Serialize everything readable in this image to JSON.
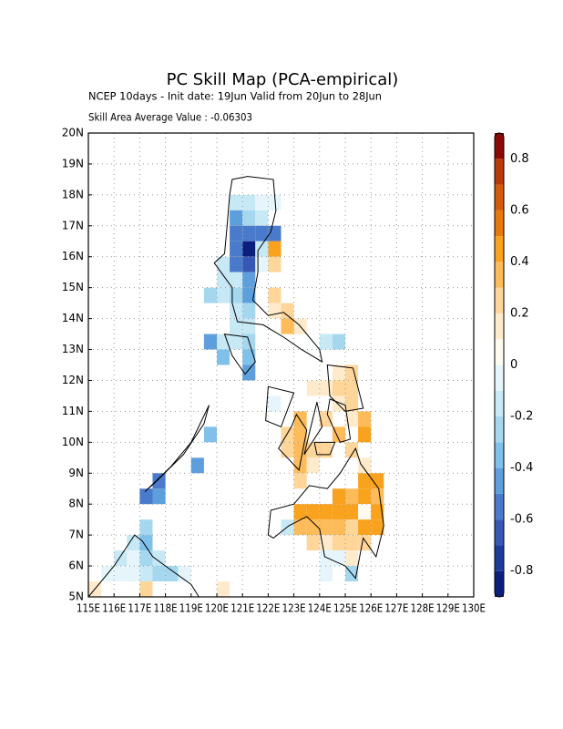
{
  "map": {
    "title": "PC Skill Map (PCA-empirical)",
    "subtitle": "NCEP 10days - Init date: 19Jun Valid from 20Jun to 28Jun",
    "annotation": "Skill Area Average Value : -0.06303",
    "xlim": [
      115,
      130
    ],
    "ylim": [
      5,
      20
    ],
    "grid": true,
    "xticks": [
      {
        "value": 115,
        "label": "115E"
      },
      {
        "value": 116,
        "label": "116E"
      },
      {
        "value": 117,
        "label": "117E"
      },
      {
        "value": 118,
        "label": "118E"
      },
      {
        "value": 119,
        "label": "119E"
      },
      {
        "value": 120,
        "label": "120E"
      },
      {
        "value": 121,
        "label": "121E"
      },
      {
        "value": 122,
        "label": "122E"
      },
      {
        "value": 123,
        "label": "123E"
      },
      {
        "value": 124,
        "label": "124E"
      },
      {
        "value": 125,
        "label": "125E"
      },
      {
        "value": 126,
        "label": "126E"
      },
      {
        "value": 127,
        "label": "127E"
      },
      {
        "value": 128,
        "label": "128E"
      },
      {
        "value": 129,
        "label": "129E"
      },
      {
        "value": 130,
        "label": "130E"
      }
    ],
    "yticks": [
      {
        "value": 5,
        "label": "5N"
      },
      {
        "value": 6,
        "label": "6N"
      },
      {
        "value": 7,
        "label": "7N"
      },
      {
        "value": 8,
        "label": "8N"
      },
      {
        "value": 9,
        "label": "9N"
      },
      {
        "value": 10,
        "label": "10N"
      },
      {
        "value": 11,
        "label": "11N"
      },
      {
        "value": 12,
        "label": "12N"
      },
      {
        "value": 13,
        "label": "13N"
      },
      {
        "value": 14,
        "label": "14N"
      },
      {
        "value": 15,
        "label": "15N"
      },
      {
        "value": 16,
        "label": "16N"
      },
      {
        "value": 17,
        "label": "17N"
      },
      {
        "value": 18,
        "label": "18N"
      },
      {
        "value": 19,
        "label": "19N"
      },
      {
        "value": 20,
        "label": "20N"
      }
    ],
    "cell_size": 0.5,
    "cells": [
      {
        "lon": 120.5,
        "lat": 17.5,
        "value": -0.15
      },
      {
        "lon": 121.0,
        "lat": 17.5,
        "value": -0.2
      },
      {
        "lon": 121.5,
        "lat": 17.5,
        "value": -0.1
      },
      {
        "lon": 122.0,
        "lat": 17.5,
        "value": -0.05
      },
      {
        "lon": 120.5,
        "lat": 17.0,
        "value": -0.5
      },
      {
        "lon": 121.0,
        "lat": 17.0,
        "value": -0.25
      },
      {
        "lon": 121.5,
        "lat": 17.0,
        "value": -0.2
      },
      {
        "lon": 120.5,
        "lat": 16.5,
        "value": -0.6
      },
      {
        "lon": 121.0,
        "lat": 16.5,
        "value": -0.55
      },
      {
        "lon": 121.5,
        "lat": 16.5,
        "value": -0.55
      },
      {
        "lon": 122.0,
        "lat": 16.5,
        "value": -0.55
      },
      {
        "lon": 120.5,
        "lat": 16.0,
        "value": -0.55
      },
      {
        "lon": 121.0,
        "lat": 16.0,
        "value": -0.85
      },
      {
        "lon": 121.5,
        "lat": 16.0,
        "value": -0.2
      },
      {
        "lon": 122.0,
        "lat": 16.0,
        "value": 0.45
      },
      {
        "lon": 120.0,
        "lat": 15.5,
        "value": -0.2
      },
      {
        "lon": 120.5,
        "lat": 15.5,
        "value": -0.55
      },
      {
        "lon": 121.0,
        "lat": 15.5,
        "value": -0.7
      },
      {
        "lon": 121.5,
        "lat": 15.5,
        "value": -0.1
      },
      {
        "lon": 122.0,
        "lat": 15.5,
        "value": 0.2
      },
      {
        "lon": 120.0,
        "lat": 15.0,
        "value": -0.15
      },
      {
        "lon": 120.5,
        "lat": 15.0,
        "value": -0.2
      },
      {
        "lon": 121.0,
        "lat": 15.0,
        "value": -0.5
      },
      {
        "lon": 119.5,
        "lat": 14.5,
        "value": -0.3
      },
      {
        "lon": 120.0,
        "lat": 14.5,
        "value": -0.2
      },
      {
        "lon": 120.5,
        "lat": 14.5,
        "value": -0.3
      },
      {
        "lon": 121.0,
        "lat": 14.5,
        "value": -0.5
      },
      {
        "lon": 122.0,
        "lat": 14.5,
        "value": 0.2
      },
      {
        "lon": 120.5,
        "lat": 14.0,
        "value": -0.15
      },
      {
        "lon": 121.0,
        "lat": 14.0,
        "value": -0.25
      },
      {
        "lon": 122.0,
        "lat": 14.0,
        "value": 0.15
      },
      {
        "lon": 122.5,
        "lat": 14.0,
        "value": 0.25
      },
      {
        "lon": 120.5,
        "lat": 13.5,
        "value": -0.15
      },
      {
        "lon": 121.0,
        "lat": 13.5,
        "value": -0.2
      },
      {
        "lon": 122.5,
        "lat": 13.5,
        "value": 0.3
      },
      {
        "lon": 123.0,
        "lat": 13.5,
        "value": 0.15
      },
      {
        "lon": 119.5,
        "lat": 13.0,
        "value": -0.5
      },
      {
        "lon": 120.0,
        "lat": 13.0,
        "value": -0.2
      },
      {
        "lon": 120.5,
        "lat": 13.0,
        "value": -0.2
      },
      {
        "lon": 121.0,
        "lat": 13.0,
        "value": -0.3
      },
      {
        "lon": 124.0,
        "lat": 13.0,
        "value": -0.2
      },
      {
        "lon": 124.5,
        "lat": 13.0,
        "value": -0.25
      },
      {
        "lon": 120.0,
        "lat": 12.5,
        "value": -0.35
      },
      {
        "lon": 121.0,
        "lat": 12.5,
        "value": -0.4
      },
      {
        "lon": 121.0,
        "lat": 12.0,
        "value": -0.5
      },
      {
        "lon": 124.5,
        "lat": 12.0,
        "value": 0.15
      },
      {
        "lon": 125.0,
        "lat": 12.0,
        "value": 0.2
      },
      {
        "lon": 123.5,
        "lat": 11.5,
        "value": 0.1
      },
      {
        "lon": 124.0,
        "lat": 11.5,
        "value": 0.15
      },
      {
        "lon": 124.5,
        "lat": 11.5,
        "value": 0.2
      },
      {
        "lon": 125.0,
        "lat": 11.5,
        "value": 0.25
      },
      {
        "lon": 122.0,
        "lat": 11.0,
        "value": -0.1
      },
      {
        "lon": 124.5,
        "lat": 11.0,
        "value": 0.15
      },
      {
        "lon": 125.0,
        "lat": 11.0,
        "value": 0.2
      },
      {
        "lon": 123.0,
        "lat": 10.5,
        "value": 0.3
      },
      {
        "lon": 124.0,
        "lat": 10.5,
        "value": 0.2
      },
      {
        "lon": 125.0,
        "lat": 10.5,
        "value": 0.15
      },
      {
        "lon": 125.5,
        "lat": 10.5,
        "value": 0.35
      },
      {
        "lon": 119.5,
        "lat": 10.0,
        "value": -0.35
      },
      {
        "lon": 122.5,
        "lat": 10.0,
        "value": 0.2
      },
      {
        "lon": 123.0,
        "lat": 10.0,
        "value": 0.35
      },
      {
        "lon": 124.5,
        "lat": 10.0,
        "value": 0.3
      },
      {
        "lon": 125.5,
        "lat": 10.0,
        "value": 0.45
      },
      {
        "lon": 122.5,
        "lat": 9.5,
        "value": 0.25
      },
      {
        "lon": 123.0,
        "lat": 9.5,
        "value": 0.3
      },
      {
        "lon": 123.5,
        "lat": 9.5,
        "value": 0.25
      },
      {
        "lon": 124.0,
        "lat": 9.5,
        "value": 0.2
      },
      {
        "lon": 125.0,
        "lat": 9.5,
        "value": 0.2
      },
      {
        "lon": 119.0,
        "lat": 9.0,
        "value": -0.45
      },
      {
        "lon": 123.0,
        "lat": 9.0,
        "value": 0.3
      },
      {
        "lon": 123.5,
        "lat": 9.0,
        "value": 0.15
      },
      {
        "lon": 125.5,
        "lat": 9.0,
        "value": 0.1
      },
      {
        "lon": 117.5,
        "lat": 8.5,
        "value": -0.55
      },
      {
        "lon": 123.0,
        "lat": 8.5,
        "value": 0.2
      },
      {
        "lon": 125.5,
        "lat": 8.5,
        "value": 0.45
      },
      {
        "lon": 126.0,
        "lat": 8.5,
        "value": 0.45
      },
      {
        "lon": 117.0,
        "lat": 8.0,
        "value": -0.55
      },
      {
        "lon": 117.5,
        "lat": 8.0,
        "value": -0.5
      },
      {
        "lon": 124.5,
        "lat": 8.0,
        "value": 0.4
      },
      {
        "lon": 125.0,
        "lat": 8.0,
        "value": 0.35
      },
      {
        "lon": 125.5,
        "lat": 8.0,
        "value": 0.45
      },
      {
        "lon": 126.0,
        "lat": 8.0,
        "value": 0.3
      },
      {
        "lon": 123.0,
        "lat": 7.5,
        "value": 0.4
      },
      {
        "lon": 123.5,
        "lat": 7.5,
        "value": 0.45
      },
      {
        "lon": 124.0,
        "lat": 7.5,
        "value": 0.45
      },
      {
        "lon": 124.5,
        "lat": 7.5,
        "value": 0.45
      },
      {
        "lon": 125.0,
        "lat": 7.5,
        "value": 0.45
      },
      {
        "lon": 125.5,
        "lat": 7.5,
        "value": 0.05
      },
      {
        "lon": 126.0,
        "lat": 7.5,
        "value": 0.45
      },
      {
        "lon": 117.0,
        "lat": 7.0,
        "value": -0.3
      },
      {
        "lon": 122.5,
        "lat": 7.0,
        "value": -0.15
      },
      {
        "lon": 123.0,
        "lat": 7.0,
        "value": 0.35
      },
      {
        "lon": 123.5,
        "lat": 7.0,
        "value": 0.3
      },
      {
        "lon": 124.0,
        "lat": 7.0,
        "value": 0.3
      },
      {
        "lon": 124.5,
        "lat": 7.0,
        "value": 0.3
      },
      {
        "lon": 125.0,
        "lat": 7.0,
        "value": 0.25
      },
      {
        "lon": 125.5,
        "lat": 7.0,
        "value": 0.45
      },
      {
        "lon": 126.0,
        "lat": 7.0,
        "value": 0.45
      },
      {
        "lon": 116.5,
        "lat": 6.5,
        "value": -0.2
      },
      {
        "lon": 117.0,
        "lat": 6.5,
        "value": -0.35
      },
      {
        "lon": 123.5,
        "lat": 6.5,
        "value": 0.2
      },
      {
        "lon": 124.0,
        "lat": 6.5,
        "value": 0.15
      },
      {
        "lon": 124.5,
        "lat": 6.5,
        "value": 0.2
      },
      {
        "lon": 125.0,
        "lat": 6.5,
        "value": 0.25
      },
      {
        "lon": 125.5,
        "lat": 6.5,
        "value": 0.2
      },
      {
        "lon": 116.0,
        "lat": 6.0,
        "value": -0.15
      },
      {
        "lon": 116.5,
        "lat": 6.0,
        "value": -0.1
      },
      {
        "lon": 117.0,
        "lat": 6.0,
        "value": -0.3
      },
      {
        "lon": 117.5,
        "lat": 6.0,
        "value": -0.2
      },
      {
        "lon": 124.0,
        "lat": 6.0,
        "value": -0.1
      },
      {
        "lon": 124.5,
        "lat": 6.0,
        "value": -0.05
      },
      {
        "lon": 125.0,
        "lat": 6.0,
        "value": 0.1
      },
      {
        "lon": 115.5,
        "lat": 5.5,
        "value": -0.05
      },
      {
        "lon": 116.0,
        "lat": 5.5,
        "value": -0.05
      },
      {
        "lon": 116.5,
        "lat": 5.5,
        "value": -0.1
      },
      {
        "lon": 117.0,
        "lat": 5.5,
        "value": -0.15
      },
      {
        "lon": 117.5,
        "lat": 5.5,
        "value": -0.3
      },
      {
        "lon": 118.0,
        "lat": 5.5,
        "value": -0.3
      },
      {
        "lon": 118.5,
        "lat": 5.5,
        "value": -0.1
      },
      {
        "lon": 124.0,
        "lat": 5.5,
        "value": -0.05
      },
      {
        "lon": 125.0,
        "lat": 5.5,
        "value": -0.3
      },
      {
        "lon": 115.0,
        "lat": 5.0,
        "value": 0.1
      },
      {
        "lon": 117.0,
        "lat": 5.0,
        "value": 0.2
      },
      {
        "lon": 120.0,
        "lat": 5.0,
        "value": 0.1
      }
    ],
    "colorbar": {
      "lim": [
        -0.9,
        0.9
      ],
      "levels": [
        -0.9,
        -0.8,
        -0.7,
        -0.6,
        -0.5,
        -0.4,
        -0.3,
        -0.2,
        -0.1,
        0,
        0.1,
        0.2,
        0.3,
        0.4,
        0.5,
        0.6,
        0.7,
        0.8,
        0.9
      ],
      "colors": [
        "#0b1f7c",
        "#1c3c9e",
        "#3558b6",
        "#4a7acb",
        "#5d9fdc",
        "#7fc1ea",
        "#a5d8ef",
        "#c7e8f5",
        "#e6f5fb",
        "#fffaf0",
        "#ffebcc",
        "#fed69a",
        "#fdbb5a",
        "#f9a21d",
        "#e8790a",
        "#d45b0a",
        "#b83a08",
        "#8c0a05"
      ],
      "ticks": [
        -0.8,
        -0.6,
        -0.4,
        -0.2,
        0,
        0.2,
        0.4,
        0.6,
        0.8
      ]
    }
  }
}
